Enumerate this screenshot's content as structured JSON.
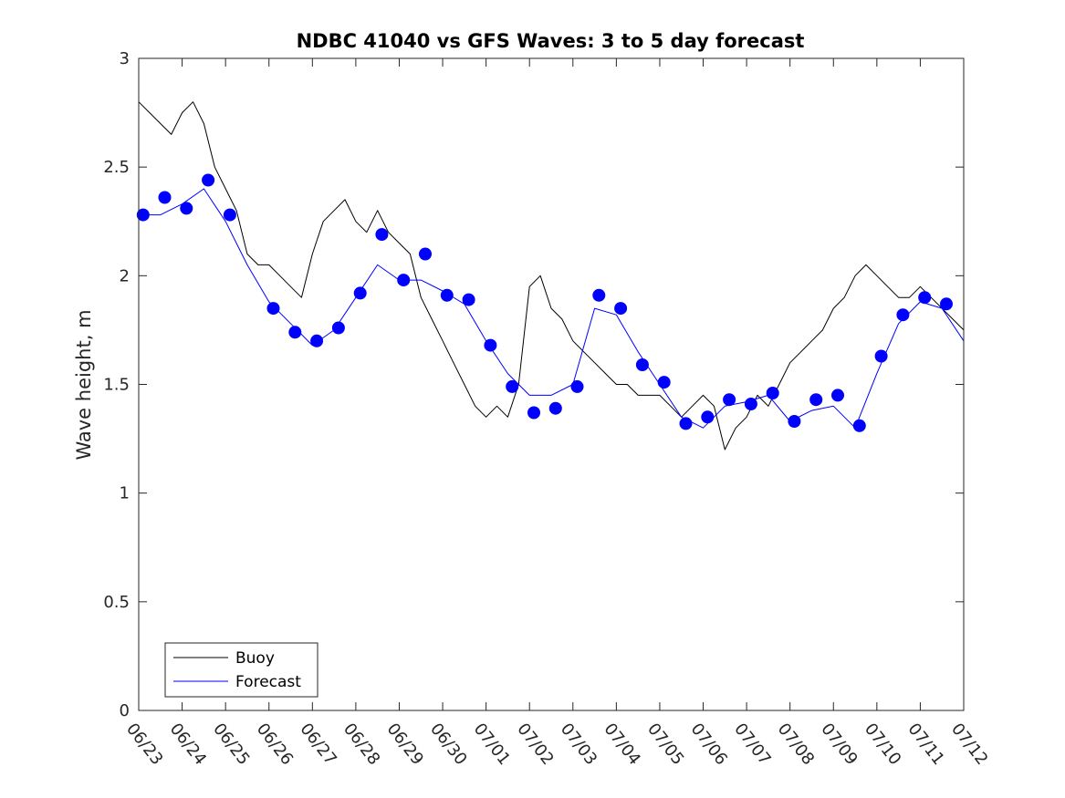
{
  "chart_data": {
    "type": "line",
    "title": "NDBC 41040 vs GFS Waves: 3 to 5 day forecast",
    "xlabel": "",
    "ylabel": "Wave height, m",
    "ylim": [
      0,
      3
    ],
    "yticks": [
      0,
      0.5,
      1,
      1.5,
      2,
      2.5,
      3
    ],
    "x_ticklabels": [
      "06/23",
      "06/24",
      "06/25",
      "06/26",
      "06/27",
      "06/28",
      "06/29",
      "06/30",
      "07/01",
      "07/02",
      "07/03",
      "07/04",
      "07/05",
      "07/06",
      "07/07",
      "07/08",
      "07/09",
      "07/10",
      "07/11",
      "07/12"
    ],
    "xlim_days": [
      0,
      19
    ],
    "grid": false,
    "legend": {
      "placement": "bottom-left",
      "entries": [
        "Buoy",
        "Forecast"
      ]
    },
    "colors": {
      "buoy": "#000000",
      "forecast": "#0000ff"
    },
    "series": [
      {
        "name": "Buoy",
        "x_days": [
          0,
          0.25,
          0.5,
          0.75,
          1,
          1.25,
          1.5,
          1.75,
          2,
          2.25,
          2.5,
          2.75,
          3,
          3.25,
          3.5,
          3.75,
          4,
          4.25,
          4.5,
          4.75,
          5,
          5.25,
          5.5,
          5.75,
          6,
          6.25,
          6.5,
          6.75,
          7,
          7.25,
          7.5,
          7.75,
          8,
          8.25,
          8.5,
          8.75,
          9,
          9.25,
          9.5,
          9.75,
          10,
          10.25,
          10.5,
          10.75,
          11,
          11.25,
          11.5,
          11.75,
          12,
          12.25,
          12.5,
          12.75,
          13,
          13.25,
          13.5,
          13.75,
          14,
          14.25,
          14.5,
          14.75,
          15,
          15.25,
          15.5,
          15.75,
          16,
          16.25,
          16.5,
          16.75,
          17,
          17.25,
          17.5,
          17.75,
          18,
          18.25,
          18.5,
          18.75,
          19
        ],
        "values": [
          2.8,
          2.75,
          2.7,
          2.65,
          2.75,
          2.8,
          2.7,
          2.5,
          2.4,
          2.3,
          2.1,
          2.05,
          2.05,
          2.0,
          1.95,
          1.9,
          2.1,
          2.25,
          2.3,
          2.35,
          2.25,
          2.2,
          2.3,
          2.2,
          2.15,
          2.1,
          1.9,
          1.8,
          1.7,
          1.6,
          1.5,
          1.4,
          1.35,
          1.4,
          1.35,
          1.5,
          1.95,
          2.0,
          1.85,
          1.8,
          1.7,
          1.65,
          1.6,
          1.55,
          1.5,
          1.5,
          1.45,
          1.45,
          1.45,
          1.4,
          1.35,
          1.4,
          1.45,
          1.4,
          1.2,
          1.3,
          1.35,
          1.45,
          1.4,
          1.5,
          1.6,
          1.65,
          1.7,
          1.75,
          1.85,
          1.9,
          2.0,
          2.05,
          2.0,
          1.95,
          1.9,
          1.9,
          1.95,
          1.9,
          1.85,
          1.8,
          1.75
        ]
      },
      {
        "name": "Forecast",
        "x_days": [
          0,
          0.5,
          1,
          1.5,
          2,
          2.5,
          3,
          3.5,
          4,
          4.5,
          5,
          5.5,
          6,
          6.5,
          7,
          7.5,
          8,
          8.5,
          9,
          9.5,
          10,
          10.5,
          11,
          11.5,
          12,
          12.5,
          13,
          13.5,
          14,
          14.5,
          15,
          15.5,
          16,
          16.5,
          17,
          17.5,
          18,
          18.5,
          19
        ],
        "values": [
          2.28,
          2.28,
          2.33,
          2.4,
          2.25,
          2.05,
          1.88,
          1.78,
          1.68,
          1.75,
          1.9,
          2.05,
          1.98,
          1.98,
          1.93,
          1.87,
          1.7,
          1.55,
          1.45,
          1.45,
          1.5,
          1.85,
          1.82,
          1.65,
          1.5,
          1.35,
          1.3,
          1.4,
          1.42,
          1.45,
          1.33,
          1.38,
          1.4,
          1.3,
          1.55,
          1.78,
          1.88,
          1.85,
          1.7
        ]
      }
    ],
    "forecast_markers": {
      "x_days": [
        0.1,
        0.6,
        1.1,
        1.6,
        2.1,
        3.1,
        3.6,
        4.1,
        4.6,
        5.1,
        5.6,
        6.1,
        6.6,
        7.1,
        7.6,
        8.1,
        8.6,
        9.1,
        9.6,
        10.1,
        10.6,
        11.1,
        11.6,
        12.1,
        12.6,
        13.1,
        13.6,
        14.1,
        14.6,
        15.1,
        15.6,
        16.1,
        16.6,
        17.1,
        17.6,
        18.1,
        18.6
      ],
      "values": [
        2.28,
        2.36,
        2.31,
        2.44,
        2.28,
        1.85,
        1.74,
        1.7,
        1.76,
        1.92,
        2.19,
        1.98,
        2.1,
        1.91,
        1.89,
        1.68,
        1.49,
        1.37,
        1.39,
        1.49,
        1.91,
        1.85,
        1.59,
        1.51,
        1.32,
        1.35,
        1.43,
        1.41,
        1.46,
        1.33,
        1.43,
        1.45,
        1.31,
        1.63,
        1.82,
        1.9,
        1.87
      ]
    }
  }
}
